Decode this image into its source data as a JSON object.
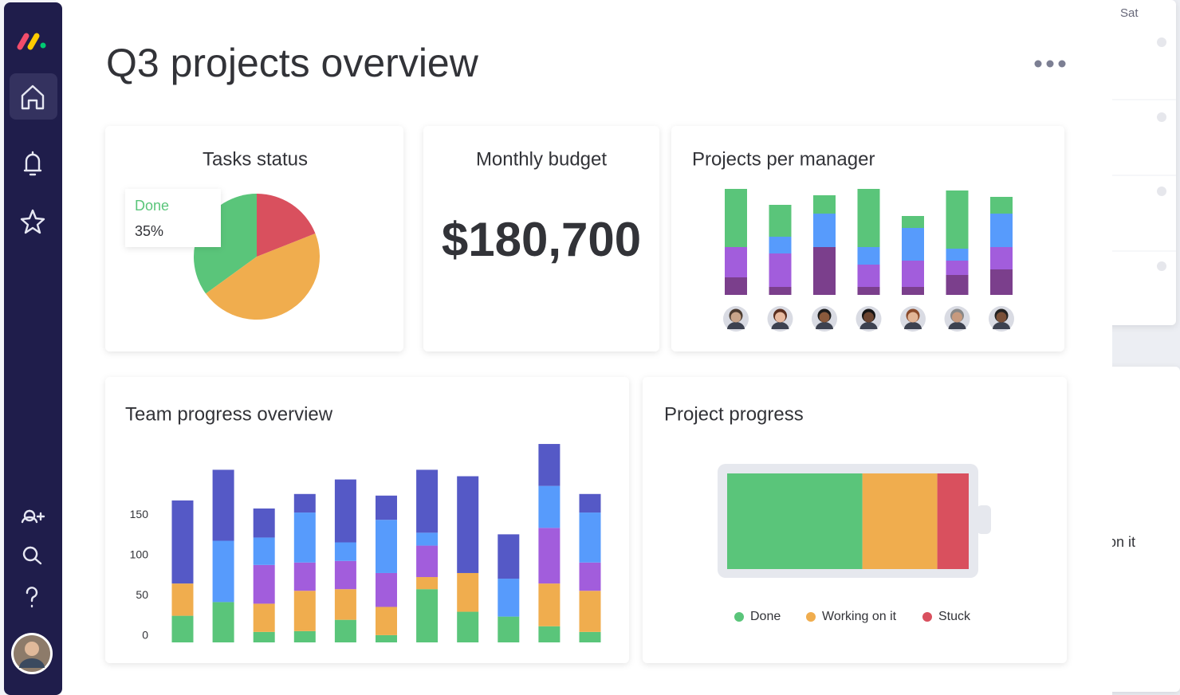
{
  "header": {
    "title": "Q3 projects overview"
  },
  "budget": {
    "title": "Monthly budget",
    "value": "$180,700"
  },
  "background": {
    "day": "Sat",
    "status": "on it"
  },
  "chart_data": [
    {
      "type": "pie",
      "title": "Tasks status",
      "categories": [
        "Done",
        null,
        null
      ],
      "values": [
        35,
        46,
        19
      ],
      "value_labels": [
        "35%",
        null,
        null
      ],
      "colors": [
        "#5ac57a",
        "#f0ad4e",
        "#d9505e"
      ]
    },
    {
      "type": "bar",
      "title": "Projects per manager",
      "stacked": true,
      "series": [
        {
          "color": "#7b3f8c",
          "values": [
            22,
            10,
            60,
            10,
            10,
            25,
            32
          ]
        },
        {
          "color": "#a25ddc",
          "values": [
            38,
            42,
            0,
            28,
            33,
            18,
            28
          ]
        },
        {
          "color": "#579bfc",
          "values": [
            0,
            21,
            42,
            22,
            41,
            15,
            42
          ]
        },
        {
          "color": "#5ac57a",
          "values": [
            73,
            40,
            23,
            73,
            15,
            73,
            21
          ]
        }
      ]
    },
    {
      "type": "bar",
      "title": "Team progress overview",
      "stacked": true,
      "ylim": [
        0,
        250
      ],
      "yticks": [
        0,
        50,
        100,
        150
      ],
      "series": [
        {
          "color": "#5ac57a",
          "values": [
            33,
            50,
            13,
            14,
            28,
            9,
            66,
            38,
            32,
            20,
            13
          ]
        },
        {
          "color": "#f0ad4e",
          "values": [
            40,
            0,
            35,
            50,
            38,
            35,
            15,
            48,
            0,
            53,
            51
          ]
        },
        {
          "color": "#a25ddc",
          "values": [
            0,
            0,
            48,
            35,
            35,
            42,
            39,
            0,
            0,
            69,
            35
          ]
        },
        {
          "color": "#579bfc",
          "values": [
            0,
            76,
            34,
            62,
            23,
            66,
            16,
            0,
            47,
            52,
            62
          ]
        },
        {
          "color": "#5559c6",
          "values": [
            103,
            88,
            36,
            23,
            78,
            30,
            78,
            120,
            55,
            52,
            23
          ]
        }
      ]
    },
    {
      "type": "bar",
      "title": "Project progress",
      "stacked": true,
      "orientation": "horizontal",
      "series": [
        {
          "name": "Done",
          "color": "#5ac57a",
          "values": [
            56
          ]
        },
        {
          "name": "Working on it",
          "color": "#f0ad4e",
          "values": [
            31
          ]
        },
        {
          "name": "Stuck",
          "color": "#d9505e",
          "values": [
            13
          ]
        }
      ]
    }
  ]
}
